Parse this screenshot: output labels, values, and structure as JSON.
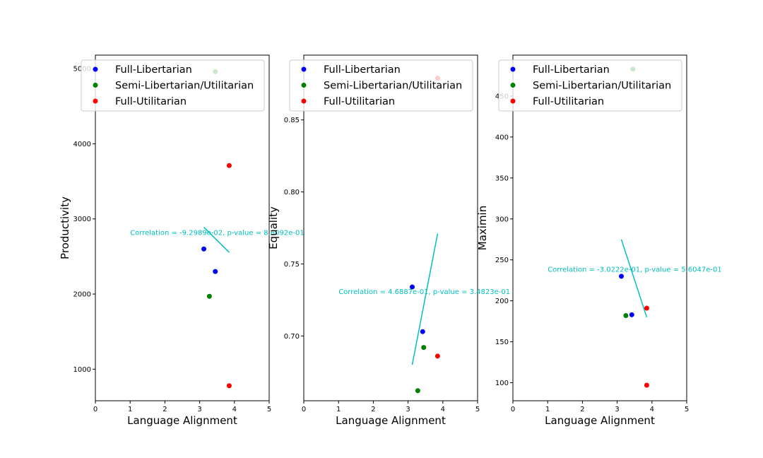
{
  "legend_entries": [
    {
      "label": "Full-Libertarian",
      "color": "#0000ff"
    },
    {
      "label": "Semi-Libertarian/Utilitarian",
      "color": "#008000"
    },
    {
      "label": "Full-Utilitarian",
      "color": "#ff0000"
    }
  ],
  "fit_line_color": "#00bfbf",
  "chart_data": [
    {
      "type": "scatter",
      "xlabel": "Language Alignment",
      "ylabel": "Productivity",
      "xlim": [
        0,
        5
      ],
      "ylim": [
        580,
        5180
      ],
      "xticks": [
        0,
        1,
        2,
        3,
        4,
        5
      ],
      "yticks": [
        1000,
        2000,
        3000,
        4000,
        5000
      ],
      "legend_location": "upper left",
      "series": [
        {
          "name": "Full-Libertarian",
          "color": "#0000ff",
          "points": [
            [
              3.12,
              2600
            ],
            [
              3.45,
              2300
            ]
          ]
        },
        {
          "name": "Semi-Libertarian/Utilitarian",
          "color": "#008000",
          "points": [
            [
              3.28,
              1970
            ],
            [
              3.45,
              4960
            ]
          ]
        },
        {
          "name": "Full-Utilitarian",
          "color": "#ff0000",
          "points": [
            [
              3.85,
              3710
            ],
            [
              3.85,
              780
            ]
          ]
        }
      ],
      "fit_line": [
        [
          3.12,
          2890
        ],
        [
          3.85,
          2555
        ]
      ],
      "annotation": {
        "text": "Correlation = -9.2989e-02, p-value = 8.6092e-01",
        "x": 1.0,
        "y": 2825
      }
    },
    {
      "type": "scatter",
      "xlabel": "Language Alignment",
      "ylabel": "Equality",
      "xlim": [
        0,
        5
      ],
      "ylim": [
        0.655,
        0.895
      ],
      "xticks": [
        0,
        1,
        2,
        3,
        4,
        5
      ],
      "yticks": [
        0.7,
        0.75,
        0.8,
        0.85
      ],
      "legend_location": "upper left",
      "series": [
        {
          "name": "Full-Libertarian",
          "color": "#0000ff",
          "points": [
            [
              3.12,
              0.734
            ],
            [
              3.42,
              0.703
            ]
          ]
        },
        {
          "name": "Semi-Libertarian/Utilitarian",
          "color": "#008000",
          "points": [
            [
              3.28,
              0.662
            ],
            [
              3.45,
              0.692
            ]
          ]
        },
        {
          "name": "Full-Utilitarian",
          "color": "#ff0000",
          "points": [
            [
              3.85,
              0.686
            ],
            [
              3.85,
              0.879
            ]
          ]
        }
      ],
      "fit_line": [
        [
          3.12,
          0.68
        ],
        [
          3.85,
          0.771
        ]
      ],
      "annotation": {
        "text": "Correlation = 4.6887e-01, p-value = 3.4823e-01",
        "x": 1.0,
        "y": 0.731
      }
    },
    {
      "type": "scatter",
      "xlabel": "Language Alignment",
      "ylabel": "Maximin",
      "xlim": [
        0,
        5
      ],
      "ylim": [
        78,
        500
      ],
      "xticks": [
        0,
        1,
        2,
        3,
        4,
        5
      ],
      "yticks": [
        100,
        150,
        200,
        250,
        300,
        350,
        400,
        450
      ],
      "legend_location": "upper left",
      "series": [
        {
          "name": "Full-Libertarian",
          "color": "#0000ff",
          "points": [
            [
              3.12,
              230
            ],
            [
              3.42,
              183
            ]
          ]
        },
        {
          "name": "Semi-Libertarian/Utilitarian",
          "color": "#008000",
          "points": [
            [
              3.25,
              182
            ],
            [
              3.45,
              483
            ]
          ]
        },
        {
          "name": "Full-Utilitarian",
          "color": "#ff0000",
          "points": [
            [
              3.85,
              191
            ],
            [
              3.85,
              97
            ]
          ]
        }
      ],
      "fit_line": [
        [
          3.12,
          275
        ],
        [
          3.85,
          180
        ]
      ],
      "annotation": {
        "text": "Correlation = -3.0222e-01, p-value = 5.6047e-01",
        "x": 1.0,
        "y": 239
      }
    }
  ]
}
